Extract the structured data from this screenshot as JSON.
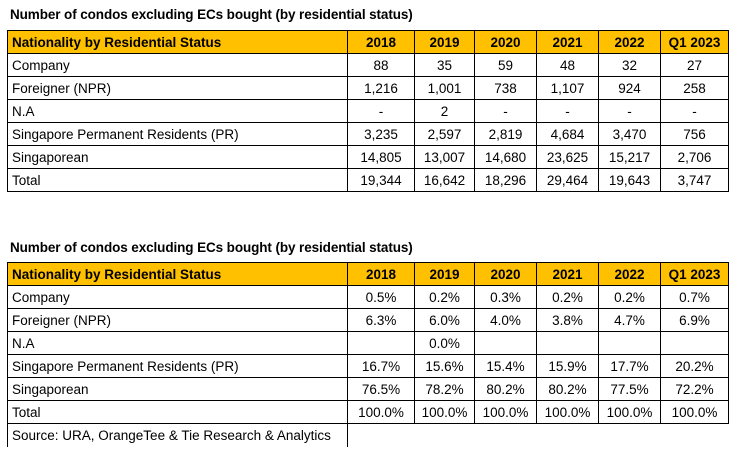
{
  "table1": {
    "title": "Number of condos excluding ECs bought (by residential status)",
    "header": [
      "Nationality by Residential Status",
      "2018",
      "2019",
      "2020",
      "2021",
      "2022",
      "Q1 2023"
    ],
    "rows": [
      [
        "Company",
        "88",
        "35",
        "59",
        "48",
        "32",
        "27"
      ],
      [
        "Foreigner (NPR)",
        "1,216",
        "1,001",
        "738",
        "1,107",
        "924",
        "258"
      ],
      [
        "N.A",
        "-",
        "2",
        "-",
        "-",
        "-",
        "-"
      ],
      [
        "Singapore Permanent Residents (PR)",
        "3,235",
        "2,597",
        "2,819",
        "4,684",
        "3,470",
        "756"
      ],
      [
        "Singaporean",
        "14,805",
        "13,007",
        "14,680",
        "23,625",
        "15,217",
        "2,706"
      ],
      [
        "Total",
        "19,344",
        "16,642",
        "18,296",
        "29,464",
        "19,643",
        "3,747"
      ]
    ]
  },
  "table2": {
    "title": "Number of condos excluding ECs bought (by residential status)",
    "header": [
      "Nationality by Residential Status",
      "2018",
      "2019",
      "2020",
      "2021",
      "2022",
      "Q1 2023"
    ],
    "rows": [
      [
        "Company",
        "0.5%",
        "0.2%",
        "0.3%",
        "0.2%",
        "0.2%",
        "0.7%"
      ],
      [
        "Foreigner (NPR)",
        "6.3%",
        "6.0%",
        "4.0%",
        "3.8%",
        "4.7%",
        "6.9%"
      ],
      [
        "N.A",
        "",
        "0.0%",
        "",
        "",
        "",
        ""
      ],
      [
        "Singapore Permanent Residents (PR)",
        "16.7%",
        "15.6%",
        "15.4%",
        "15.9%",
        "17.7%",
        "20.2%"
      ],
      [
        "Singaporean",
        "76.5%",
        "78.2%",
        "80.2%",
        "80.2%",
        "77.5%",
        "72.2%"
      ],
      [
        "Total",
        "100.0%",
        "100.0%",
        "100.0%",
        "100.0%",
        "100.0%",
        "100.0%"
      ]
    ]
  },
  "source": "Source: URA, OrangeTee & Tie Research & Analytics",
  "colors": {
    "header_fill": "#ffc000",
    "border": "#000000"
  }
}
